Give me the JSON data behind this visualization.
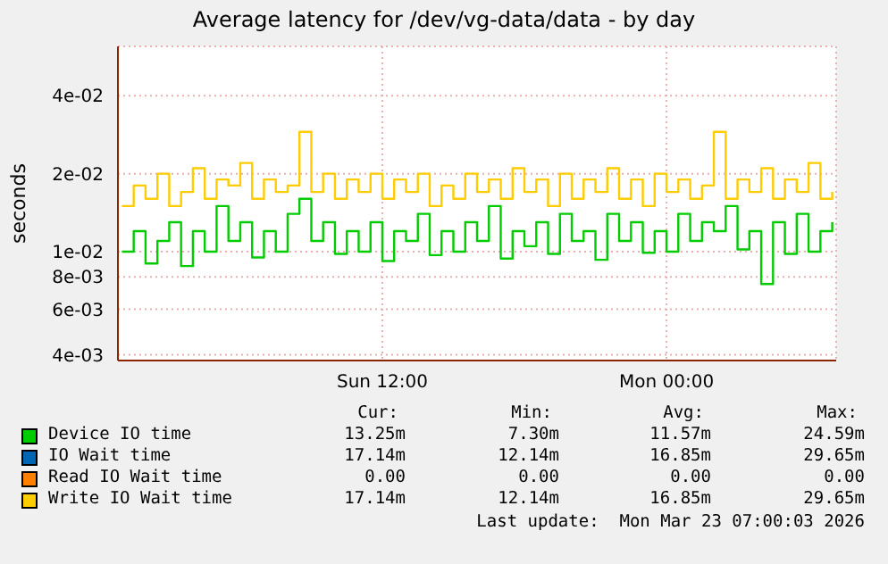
{
  "chart_data": {
    "type": "step",
    "title": "Average latency for /dev/vg-data/data - by day",
    "ylabel": "seconds",
    "x": [
      "2026-03-22T01:00",
      "2026-03-22T01:30",
      "2026-03-22T02:00",
      "2026-03-22T02:30",
      "2026-03-22T03:00",
      "2026-03-22T03:30",
      "2026-03-22T04:00",
      "2026-03-22T04:30",
      "2026-03-22T05:00",
      "2026-03-22T05:30",
      "2026-03-22T06:00",
      "2026-03-22T06:30",
      "2026-03-22T07:00",
      "2026-03-22T07:30",
      "2026-03-22T08:00",
      "2026-03-22T08:30",
      "2026-03-22T09:00",
      "2026-03-22T09:30",
      "2026-03-22T10:00",
      "2026-03-22T10:30",
      "2026-03-22T11:00",
      "2026-03-22T11:30",
      "2026-03-22T12:00",
      "2026-03-22T12:30",
      "2026-03-22T13:00",
      "2026-03-22T13:30",
      "2026-03-22T14:00",
      "2026-03-22T14:30",
      "2026-03-22T15:00",
      "2026-03-22T15:30",
      "2026-03-22T16:00",
      "2026-03-22T16:30",
      "2026-03-22T17:00",
      "2026-03-22T17:30",
      "2026-03-22T18:00",
      "2026-03-22T18:30",
      "2026-03-22T19:00",
      "2026-03-22T19:30",
      "2026-03-22T20:00",
      "2026-03-22T20:30",
      "2026-03-22T21:00",
      "2026-03-22T21:30",
      "2026-03-22T22:00",
      "2026-03-22T22:30",
      "2026-03-22T23:00",
      "2026-03-22T23:30",
      "2026-03-23T00:00",
      "2026-03-23T00:30",
      "2026-03-23T01:00",
      "2026-03-23T01:30",
      "2026-03-23T02:00",
      "2026-03-23T02:30",
      "2026-03-23T03:00",
      "2026-03-23T03:30",
      "2026-03-23T04:00",
      "2026-03-23T04:30",
      "2026-03-23T05:00",
      "2026-03-23T05:30",
      "2026-03-23T06:00",
      "2026-03-23T06:30",
      "2026-03-23T07:00"
    ],
    "series": [
      {
        "name": "Device IO time",
        "color": "#00cc00",
        "values": [
          0.01,
          0.012,
          0.009,
          0.011,
          0.013,
          0.0088,
          0.012,
          0.01,
          0.015,
          0.011,
          0.013,
          0.0095,
          0.012,
          0.01,
          0.014,
          0.016,
          0.011,
          0.013,
          0.0098,
          0.012,
          0.01,
          0.013,
          0.0092,
          0.012,
          0.011,
          0.014,
          0.0097,
          0.012,
          0.01,
          0.013,
          0.011,
          0.015,
          0.0094,
          0.012,
          0.0105,
          0.013,
          0.0098,
          0.014,
          0.011,
          0.012,
          0.0093,
          0.014,
          0.011,
          0.013,
          0.0099,
          0.012,
          0.01,
          0.014,
          0.011,
          0.013,
          0.012,
          0.015,
          0.0102,
          0.012,
          0.0075,
          0.013,
          0.0098,
          0.014,
          0.01,
          0.012,
          0.013
        ]
      },
      {
        "name": "IO Wait time",
        "color": "#0066b3",
        "values": [
          null,
          null,
          null,
          null,
          null,
          null,
          null,
          null,
          null,
          null,
          null,
          null,
          null,
          null,
          null,
          null,
          null,
          null,
          null,
          null,
          null,
          null,
          null,
          null,
          null,
          null,
          null,
          null,
          null,
          null,
          null,
          null,
          null,
          null,
          null,
          null,
          null,
          null,
          null,
          null,
          null,
          null,
          null,
          null,
          null,
          null,
          null,
          null,
          null,
          null,
          null,
          null,
          null,
          null,
          null,
          null,
          null,
          null,
          null,
          null,
          null
        ]
      },
      {
        "name": "Read IO Wait time",
        "color": "#ff8000",
        "values": [
          null,
          null,
          null,
          null,
          null,
          null,
          null,
          null,
          null,
          null,
          null,
          null,
          null,
          null,
          null,
          null,
          null,
          null,
          null,
          null,
          null,
          null,
          null,
          null,
          null,
          null,
          null,
          null,
          null,
          null,
          null,
          null,
          null,
          null,
          null,
          null,
          null,
          null,
          null,
          null,
          null,
          null,
          null,
          null,
          null,
          null,
          null,
          null,
          null,
          null,
          null,
          null,
          null,
          null,
          null,
          null,
          null,
          null,
          null,
          null,
          null
        ]
      },
      {
        "name": "Write IO Wait time",
        "color": "#ffcc00",
        "values": [
          0.015,
          0.018,
          0.016,
          0.02,
          0.015,
          0.017,
          0.021,
          0.016,
          0.019,
          0.018,
          0.022,
          0.016,
          0.019,
          0.017,
          0.018,
          0.029,
          0.017,
          0.02,
          0.016,
          0.019,
          0.017,
          0.02,
          0.016,
          0.019,
          0.017,
          0.02,
          0.015,
          0.018,
          0.016,
          0.02,
          0.017,
          0.019,
          0.016,
          0.021,
          0.017,
          0.019,
          0.015,
          0.02,
          0.016,
          0.019,
          0.017,
          0.021,
          0.016,
          0.019,
          0.015,
          0.02,
          0.017,
          0.019,
          0.016,
          0.018,
          0.029,
          0.016,
          0.019,
          0.017,
          0.021,
          0.016,
          0.019,
          0.017,
          0.022,
          0.016,
          0.017
        ]
      }
    ],
    "xlim": [
      "2026-03-22T00:50",
      "2026-03-23T07:10"
    ],
    "xticks": [
      {
        "value": "2026-03-22T12:00",
        "label": "Sun 12:00"
      },
      {
        "value": "2026-03-23T00:00",
        "label": "Mon 00:00"
      }
    ],
    "ylim": [
      0.0038,
      0.062
    ],
    "yticks": [
      {
        "value": 0.004,
        "label": "4e-03"
      },
      {
        "value": 0.006,
        "label": "6e-03"
      },
      {
        "value": 0.008,
        "label": "8e-03"
      },
      {
        "value": 0.01,
        "label": "1e-02"
      },
      {
        "value": 0.02,
        "label": "2e-02"
      },
      {
        "value": 0.04,
        "label": "4e-02"
      }
    ],
    "log": "y",
    "grid": true,
    "legend": "bottom",
    "marker": "none",
    "line_style": "solid",
    "annotations": [
      "Cur:",
      "Min:",
      "Avg:",
      "Max:",
      "13.25m",
      "7.30m",
      "11.57m",
      "24.59m",
      "17.14m",
      "12.14m",
      "16.85m",
      "29.65m",
      "0.00",
      "0.00",
      "0.00",
      "0.00",
      "17.14m",
      "12.14m",
      "16.85m",
      "29.65m",
      "Last update:  Mon Mar 23 07:00:03 2026"
    ]
  }
}
